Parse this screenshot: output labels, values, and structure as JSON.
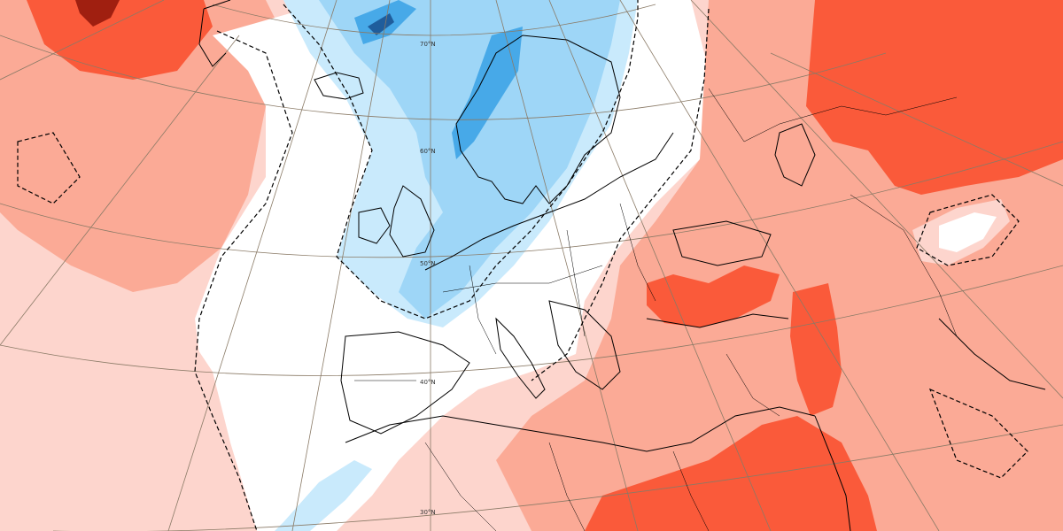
{
  "map": {
    "graticule_labels": {
      "lat_70": "70°N",
      "lat_60": "60°N",
      "lat_50": "50°N",
      "lat_40": "40°N",
      "lat_30": "30°N"
    },
    "colors": {
      "background": "#ffffff",
      "warm_1": "#fdd5cd",
      "warm_2": "#fbaa96",
      "warm_3": "#fa5a3a",
      "warm_4": "#d8301a",
      "warm_5": "#a01f10",
      "cool_1": "#c9eafc",
      "cool_2": "#9ed6f7",
      "cool_3": "#47a9e8",
      "cool_4": "#1f5d9c",
      "coastline": "#000000",
      "graticule": "#8a7a66",
      "zero_contour": "#000000"
    },
    "contour_style": "dashed"
  }
}
